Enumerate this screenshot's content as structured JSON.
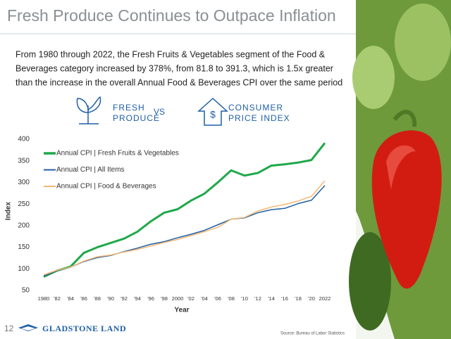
{
  "header": {
    "title": "Fresh Produce Continues to Outpace Inflation"
  },
  "intro": {
    "lines": [
      "From 1980 through 2022, the Fresh Fruits & Vegetables segment of the Food &",
      "Beverages category increased by 378%, from 81.8 to 391.3, which is 1.5x greater",
      "than the increase in the overall Annual Food & Beverages CPI over the same period"
    ]
  },
  "compare": {
    "left": [
      "FRESH",
      "PRODUCE"
    ],
    "middle": "VS",
    "right": [
      "CONSUMER",
      "PRICE INDEX"
    ]
  },
  "chart_data": {
    "type": "line",
    "xlabel": "Year",
    "ylabel": "Index",
    "x": [
      1980,
      1982,
      1984,
      1986,
      1988,
      1990,
      1992,
      1994,
      1996,
      1998,
      2000,
      2002,
      2004,
      2006,
      2008,
      2010,
      2012,
      2014,
      2016,
      2018,
      2020,
      2022
    ],
    "series": [
      {
        "name": "Annual CPI | Fresh Fruits & Vegetables",
        "color": "#1fa84a",
        "width": 3,
        "values": [
          81.8,
          96,
          105,
          137,
          150,
          160,
          170,
          186,
          210,
          230,
          238,
          258,
          274,
          300,
          328,
          316,
          322,
          339,
          342,
          346,
          352,
          391.3
        ]
      },
      {
        "name": "Annual CPI | All Items",
        "color": "#1f5fa6",
        "width": 1.5,
        "values": [
          83,
          96,
          104,
          117,
          126,
          131,
          140,
          148,
          157,
          163,
          172,
          180,
          189,
          202,
          215,
          218,
          230,
          237,
          240,
          251,
          259,
          293
        ]
      },
      {
        "name": "Annual CPI | Food & Beverages",
        "color": "#f5b870",
        "width": 1.5,
        "values": [
          86,
          97,
          104,
          118,
          128,
          132,
          139,
          145,
          153,
          161,
          168,
          177,
          186,
          196,
          215,
          219,
          234,
          243,
          249,
          257,
          268,
          304
        ]
      }
    ],
    "xlim": [
      1980,
      2022
    ],
    "xticks": [
      1980,
      {
        "value": 1982,
        "label": "'82"
      },
      {
        "value": 1984,
        "label": "'84"
      },
      {
        "value": 1986,
        "label": "'86"
      },
      {
        "value": 1988,
        "label": "'88"
      },
      {
        "value": 1990,
        "label": "'90"
      },
      {
        "value": 1992,
        "label": "'92"
      },
      {
        "value": 1994,
        "label": "'94"
      },
      {
        "value": 1996,
        "label": "'96"
      },
      {
        "value": 1998,
        "label": "'98"
      },
      2000,
      {
        "value": 2002,
        "label": "'02"
      },
      {
        "value": 2004,
        "label": "'04"
      },
      {
        "value": 2006,
        "label": "'06"
      },
      {
        "value": 2008,
        "label": "'08"
      },
      {
        "value": 2010,
        "label": "'10"
      },
      {
        "value": 2012,
        "label": "'12"
      },
      {
        "value": 2014,
        "label": "'14"
      },
      {
        "value": 2016,
        "label": "'16"
      },
      {
        "value": 2018,
        "label": "'18"
      },
      {
        "value": 2020,
        "label": "'20"
      },
      2022
    ],
    "ylim": [
      50,
      400
    ],
    "yticks": [
      50,
      100,
      150,
      200,
      250,
      300,
      350,
      400
    ],
    "legend": "upper left",
    "grid": false
  },
  "footer": {
    "page": "12",
    "logo": "GLADSTONE LAND",
    "source": "Source: Bureau of Labor Statistics"
  }
}
